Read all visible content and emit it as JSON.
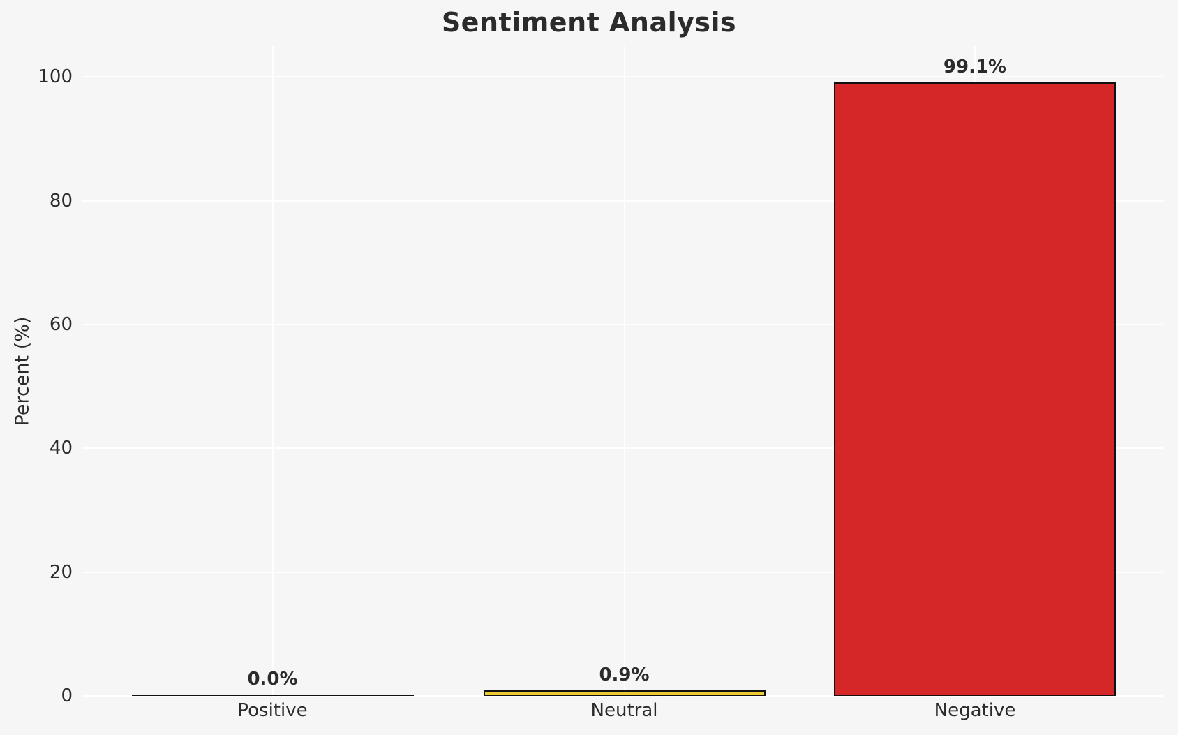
{
  "chart_data": {
    "type": "bar",
    "title": "Sentiment Analysis",
    "xlabel": "",
    "ylabel": "Percent (%)",
    "categories": [
      "Positive",
      "Neutral",
      "Negative"
    ],
    "values": [
      0.0,
      0.9,
      99.1
    ],
    "value_labels": [
      "0.0%",
      "0.9%",
      "99.1%"
    ],
    "yticks": [
      0,
      20,
      40,
      60,
      80,
      100
    ],
    "ylim": [
      0,
      105
    ],
    "grid": true,
    "legend_position": "none",
    "bar_colors": [
      null,
      "#EFCB33",
      "#D62728"
    ],
    "bar_edge_color": "#111111",
    "background_color": "#F5F6F5",
    "gridline_color": "#FFFFFF",
    "text_color": "#2B2B2B"
  }
}
